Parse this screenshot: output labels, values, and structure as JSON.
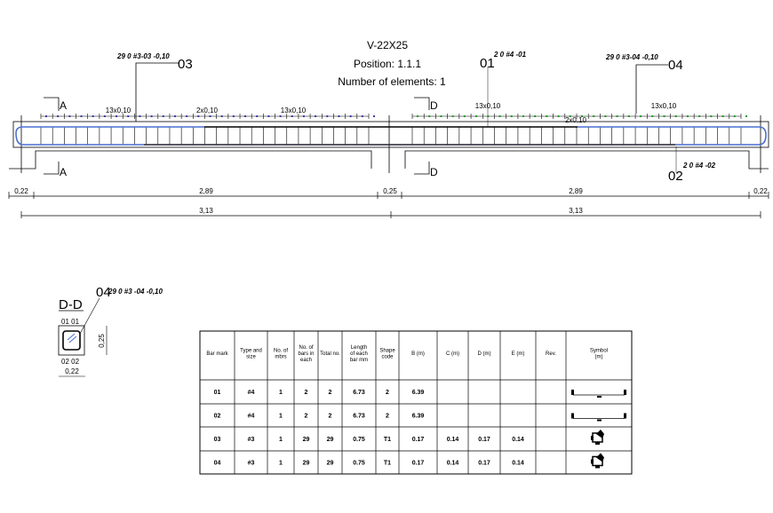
{
  "title": {
    "beam": "V-22X25",
    "position": "Position: 1.1.1",
    "elements": "Number of elements: 1"
  },
  "colors": {
    "stirrup_marks_left": "#3a3aa8",
    "stirrup_marks_right": "#1a9a1a",
    "bar_blue": "#4a6fd0",
    "line": "#000000"
  },
  "callouts": {
    "c03": {
      "text": "29 0  #3-03 -0,10",
      "mark": "03"
    },
    "c01": {
      "text": "2 0  #4 -01",
      "mark": "01"
    },
    "c04": {
      "text": "29 0  #3-04 -0,10",
      "mark": "04"
    },
    "c02": {
      "text": "2 0  #4 -02",
      "mark": "02"
    }
  },
  "spacing": {
    "l1": "13x0,10",
    "l2": "2x0,10",
    "l3": "13x0,10",
    "r1": "13x0,10",
    "r2": "2x0,10",
    "r3": "13x0,10"
  },
  "sections": {
    "a": "A",
    "d": "D"
  },
  "dims": {
    "d1": "0,22",
    "d2": "2,89",
    "d3": "0,25",
    "d4": "2,89",
    "d5": "0,22",
    "t1": "3,13",
    "t2": "3,13"
  },
  "detail": {
    "title": "D-D",
    "callout": "29 0  #3 -04 -0,10",
    "mark": "04",
    "top": "01 01",
    "bottom": "02 02",
    "width": "0,22",
    "height": "0,25"
  },
  "table": {
    "headers": [
      "Bar mark",
      "Type and size",
      "No. of mbrs",
      "No. of bars in each",
      "Total no.",
      "Length of each bar mm",
      "Shape code",
      "B (m)",
      "C (m)",
      "D (m)",
      "E (m)",
      "Rev.",
      "Symbol (m)"
    ],
    "rows": [
      [
        "01",
        "#4",
        "1",
        "2",
        "2",
        "6.73",
        "2",
        "6.39",
        "",
        "",
        "",
        "",
        ""
      ],
      [
        "02",
        "#4",
        "1",
        "2",
        "2",
        "6.73",
        "2",
        "6.39",
        "",
        "",
        "",
        "",
        ""
      ],
      [
        "03",
        "#3",
        "1",
        "29",
        "29",
        "0.75",
        "T1",
        "0.17",
        "0.14",
        "0.17",
        "0.14",
        "",
        ""
      ],
      [
        "04",
        "#3",
        "1",
        "29",
        "29",
        "0.75",
        "T1",
        "0.17",
        "0.14",
        "0.17",
        "0.14",
        "",
        ""
      ]
    ],
    "symbols": [
      "straight-bar-hooks",
      "straight-bar-hooks",
      "stirrup",
      "stirrup"
    ]
  }
}
